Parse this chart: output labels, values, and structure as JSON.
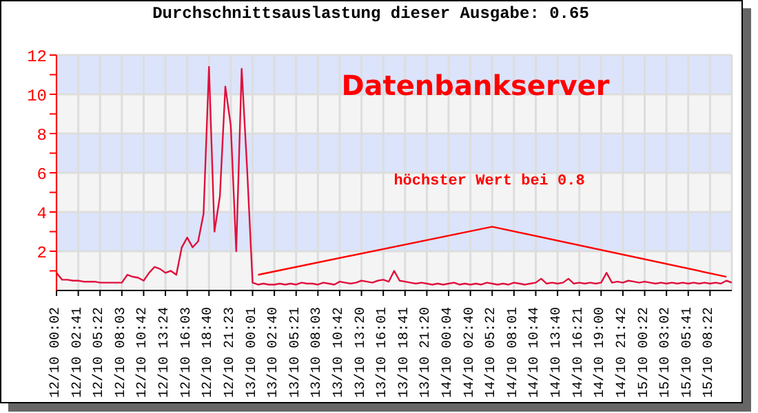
{
  "chart_data": {
    "type": "line",
    "title": "Durchschnittsauslastung dieser Ausgabe: 0.65",
    "annotations": [
      "Datenbankserver",
      "höchster Wert bei 0.8"
    ],
    "categories": [
      "12/10 00:02",
      null,
      null,
      null,
      "12/10 02:41",
      null,
      null,
      null,
      "12/10 05:22",
      null,
      null,
      null,
      "12/10 08:03",
      null,
      null,
      null,
      "12/10 10:42",
      null,
      null,
      null,
      "12/10 13:24",
      null,
      null,
      null,
      "12/10 16:03",
      null,
      null,
      null,
      "12/10 18:40",
      null,
      null,
      null,
      "12/10 21:23",
      null,
      null,
      null,
      "13/10 00:01",
      null,
      null,
      null,
      "13/10 02:40",
      null,
      null,
      null,
      "13/10 05:21",
      null,
      null,
      null,
      "13/10 08:03",
      null,
      null,
      null,
      "13/10 10:42",
      null,
      null,
      null,
      "13/10 13:20",
      null,
      null,
      null,
      "13/10 16:01",
      null,
      null,
      null,
      "13/10 18:41",
      null,
      null,
      null,
      "13/10 21:20",
      null,
      null,
      null,
      "14/10 00:04",
      null,
      null,
      null,
      "14/10 02:40",
      null,
      null,
      null,
      "14/10 05:22",
      null,
      null,
      null,
      "14/10 08:01",
      null,
      null,
      null,
      "14/10 10:44",
      null,
      null,
      null,
      "14/10 13:40",
      null,
      null,
      null,
      "14/10 16:21",
      null,
      null,
      null,
      "14/10 19:00",
      null,
      null,
      null,
      "14/10 21:42",
      null,
      null,
      null,
      "15/10 00:22",
      null,
      null,
      null,
      "15/10 03:02",
      null,
      null,
      null,
      "15/10 05:41",
      null,
      null,
      null,
      "15/10 08:22",
      null,
      null,
      null,
      null
    ],
    "series": [
      {
        "color": "#e0103c",
        "values": [
          0.9,
          0.55,
          0.55,
          0.5,
          0.5,
          0.45,
          0.45,
          0.45,
          0.4,
          0.4,
          0.4,
          0.4,
          0.4,
          0.8,
          0.7,
          0.65,
          0.5,
          0.9,
          1.2,
          1.1,
          0.9,
          1.0,
          0.8,
          2.2,
          2.7,
          2.2,
          2.5,
          3.9,
          11.4,
          3.0,
          4.8,
          10.4,
          8.4,
          2.0,
          11.3,
          6.2,
          0.4,
          0.3,
          0.35,
          0.3,
          0.3,
          0.35,
          0.3,
          0.35,
          0.3,
          0.4,
          0.35,
          0.35,
          0.3,
          0.4,
          0.35,
          0.3,
          0.45,
          0.4,
          0.35,
          0.4,
          0.5,
          0.45,
          0.4,
          0.5,
          0.55,
          0.45,
          1.0,
          0.5,
          0.45,
          0.4,
          0.35,
          0.4,
          0.35,
          0.3,
          0.35,
          0.3,
          0.35,
          0.4,
          0.3,
          0.35,
          0.3,
          0.35,
          0.3,
          0.4,
          0.35,
          0.3,
          0.35,
          0.3,
          0.4,
          0.35,
          0.3,
          0.35,
          0.4,
          0.6,
          0.35,
          0.4,
          0.35,
          0.4,
          0.6,
          0.35,
          0.4,
          0.35,
          0.4,
          0.35,
          0.4,
          0.9,
          0.4,
          0.45,
          0.4,
          0.5,
          0.45,
          0.4,
          0.45,
          0.4,
          0.35,
          0.4,
          0.35,
          0.4,
          0.35,
          0.4,
          0.35,
          0.4,
          0.35,
          0.4,
          0.35,
          0.4,
          0.35,
          0.5,
          0.4
        ]
      },
      {
        "type": "line",
        "color": "#ff0000",
        "values": [
          null,
          null,
          null,
          null,
          null,
          null,
          null,
          null,
          null,
          null,
          null,
          null,
          null,
          null,
          null,
          null,
          null,
          null,
          null,
          null,
          null,
          null,
          null,
          null,
          null,
          null,
          null,
          null,
          null,
          null,
          null,
          null,
          null,
          null,
          null,
          null,
          null,
          0.8,
          null,
          null,
          null,
          null,
          null,
          null,
          null,
          null,
          null,
          null,
          null,
          null,
          null,
          null,
          null,
          null,
          null,
          null,
          null,
          null,
          null,
          null,
          null,
          null,
          null,
          null,
          null,
          null,
          null,
          null,
          null,
          null,
          null,
          null,
          null,
          null,
          null,
          null,
          null,
          null,
          null,
          null,
          3.25,
          null,
          null,
          null,
          null,
          null,
          null,
          null,
          null,
          null,
          null,
          null,
          null,
          null,
          null,
          null,
          null,
          null,
          null,
          null,
          null,
          null,
          null,
          null,
          null,
          null,
          null,
          null,
          null,
          null,
          null,
          null,
          null,
          null,
          null,
          null,
          null,
          null,
          null,
          null,
          null,
          null,
          null,
          0.7,
          null
        ]
      }
    ],
    "ylim": [
      0,
      12
    ],
    "yticks": [
      {
        "value": 1,
        "label": null
      },
      2,
      {
        "value": 3,
        "label": null
      },
      4,
      {
        "value": 5,
        "label": null
      },
      6,
      {
        "value": 7,
        "label": null
      },
      8,
      {
        "value": 9,
        "label": null
      },
      10,
      {
        "value": 11,
        "label": null
      },
      12
    ],
    "grid": true,
    "marker": "none",
    "line_style": "solid"
  }
}
